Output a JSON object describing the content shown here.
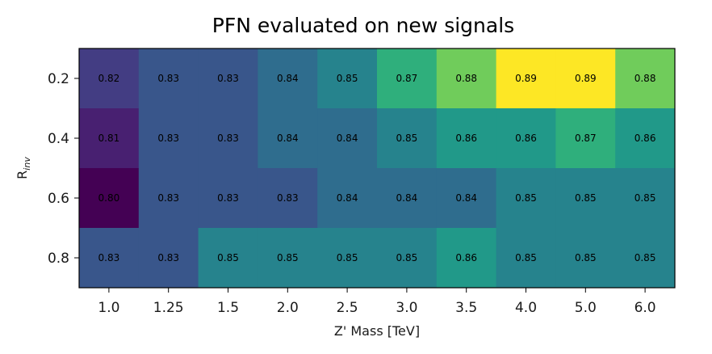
{
  "chart_data": {
    "type": "heatmap",
    "title": "PFN evaluated on new signals",
    "xlabel": "Z' Mass [TeV]",
    "ylabel_main": "R",
    "ylabel_sub": "inv",
    "x_categories": [
      "1.0",
      "1.25",
      "1.5",
      "2.0",
      "2.5",
      "3.0",
      "3.5",
      "4.0",
      "5.0",
      "6.0"
    ],
    "y_categories": [
      "0.2",
      "0.4",
      "0.6",
      "0.8"
    ],
    "values": [
      [
        0.82,
        0.83,
        0.83,
        0.84,
        0.85,
        0.87,
        0.88,
        0.89,
        0.89,
        0.88
      ],
      [
        0.81,
        0.83,
        0.83,
        0.84,
        0.84,
        0.85,
        0.86,
        0.86,
        0.87,
        0.86
      ],
      [
        0.8,
        0.83,
        0.83,
        0.83,
        0.84,
        0.84,
        0.84,
        0.85,
        0.85,
        0.85
      ],
      [
        0.83,
        0.83,
        0.85,
        0.85,
        0.85,
        0.85,
        0.86,
        0.85,
        0.85,
        0.85
      ]
    ],
    "colormap": "viridis"
  }
}
